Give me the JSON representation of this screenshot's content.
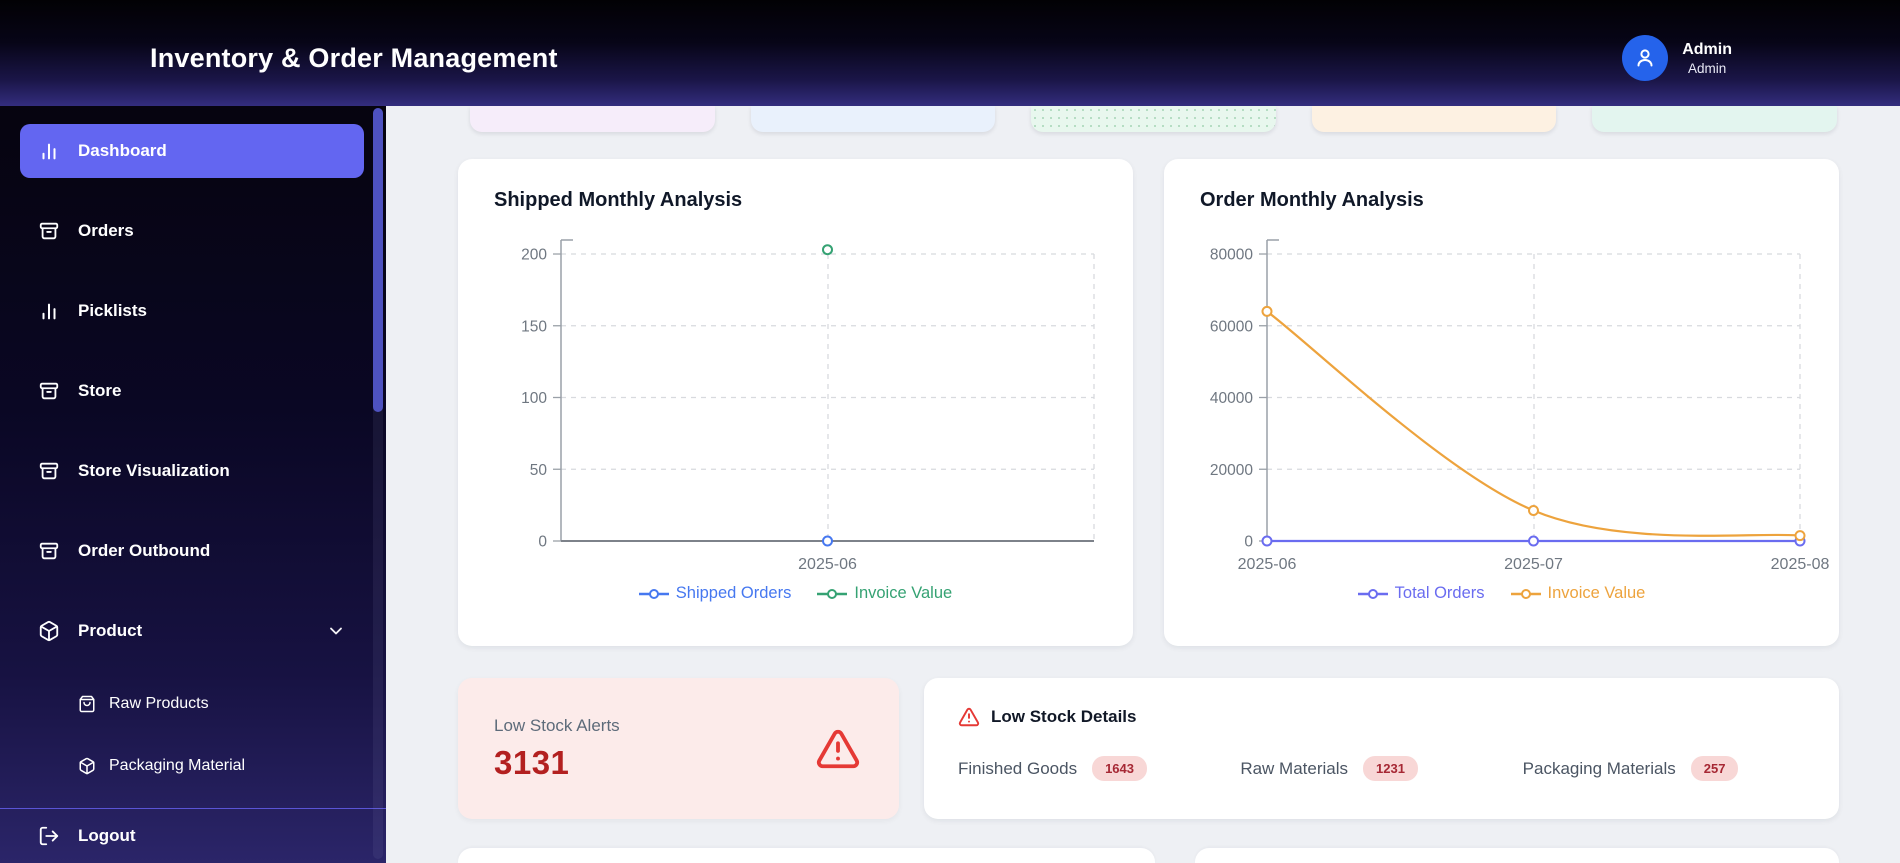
{
  "header": {
    "title": "Inventory & Order Management",
    "user": {
      "name": "Admin",
      "role": "Admin"
    }
  },
  "sidebar": {
    "items": [
      {
        "label": "Dashboard",
        "icon": "bar-chart",
        "active": true
      },
      {
        "label": "Orders",
        "icon": "archive"
      },
      {
        "label": "Picklists",
        "icon": "bar-chart"
      },
      {
        "label": "Store",
        "icon": "archive"
      },
      {
        "label": "Store Visualization",
        "icon": "archive"
      },
      {
        "label": "Order Outbound",
        "icon": "archive"
      },
      {
        "label": "Product",
        "icon": "package",
        "expanded": true,
        "children": [
          {
            "label": "Raw Products",
            "icon": "shopping-bag"
          },
          {
            "label": "Packaging Material",
            "icon": "package"
          }
        ]
      }
    ],
    "logout_label": "Logout",
    "active_color": "#6366f1"
  },
  "stats_row": {
    "cards": [
      {
        "color": "#f6edfa"
      },
      {
        "color": "#e9f1fc"
      },
      {
        "color": "#e8f7ee",
        "pattern": "dots"
      },
      {
        "color": "#fdf1e2"
      },
      {
        "color": "#e3f5ef"
      }
    ]
  },
  "charts": [
    {
      "title": "Shipped Monthly Analysis",
      "chart_data": {
        "type": "line",
        "categories": [
          "2025-06"
        ],
        "series": [
          {
            "name": "Shipped Orders",
            "color": "#4678f0",
            "values": [
              0
            ]
          },
          {
            "name": "Invoice Value",
            "color": "#35a273",
            "values": [
              203
            ]
          }
        ],
        "ylim": [
          0,
          200
        ],
        "yticks": [
          0,
          50,
          100,
          150,
          200
        ],
        "grid": "dashed",
        "legend_position": "bottom"
      }
    },
    {
      "title": "Order Monthly Analysis",
      "chart_data": {
        "type": "line",
        "categories": [
          "2025-06",
          "2025-07",
          "2025-08"
        ],
        "series": [
          {
            "name": "Total Orders",
            "color": "#6a6cf0",
            "values": [
              0,
              0,
              0
            ]
          },
          {
            "name": "Invoice Value",
            "color": "#eda33d",
            "values": [
              64000,
              8500,
              1500
            ]
          }
        ],
        "ylim": [
          0,
          80000
        ],
        "yticks": [
          0,
          20000,
          40000,
          60000,
          80000
        ],
        "grid": "dashed",
        "legend_position": "bottom"
      }
    }
  ],
  "low_stock": {
    "label": "Low Stock Alerts",
    "value": "3131",
    "accent": "#b32020"
  },
  "low_stock_details": {
    "title": "Low Stock Details",
    "items": [
      {
        "label": "Finished Goods",
        "count": "1643"
      },
      {
        "label": "Raw Materials",
        "count": "1231"
      },
      {
        "label": "Packaging Materials",
        "count": "257"
      }
    ]
  }
}
